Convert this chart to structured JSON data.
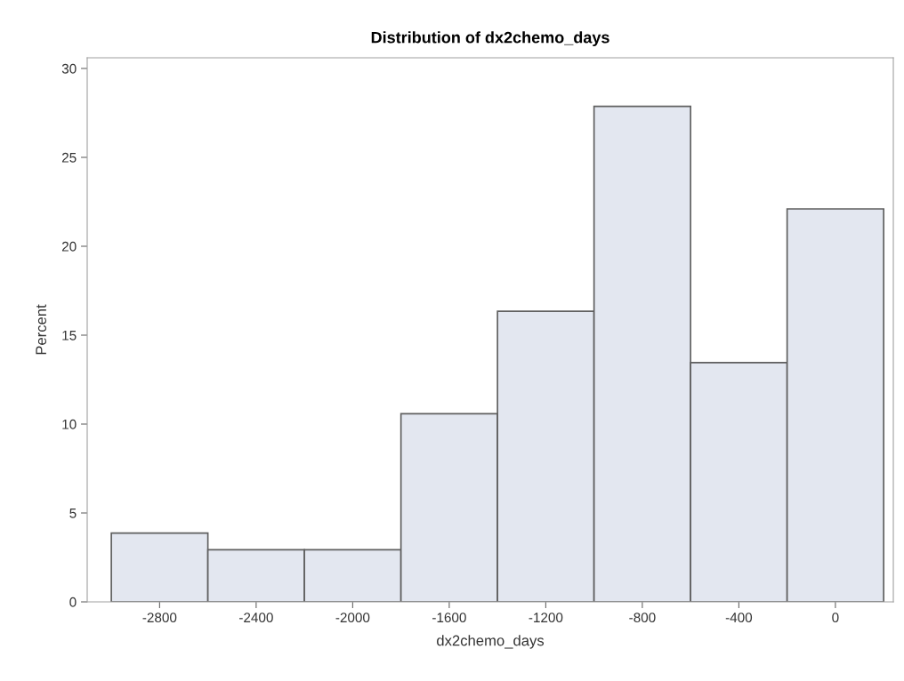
{
  "chart_data": {
    "type": "histogram",
    "title": "Distribution of dx2chemo_days",
    "xlabel": "dx2chemo_days",
    "ylabel": "Percent",
    "bins": [
      -3000,
      -2600,
      -2200,
      -1800,
      -1400,
      -1000,
      -600,
      -200,
      200
    ],
    "values": [
      3.87,
      2.93,
      2.93,
      10.58,
      16.34,
      27.87,
      13.46,
      22.1
    ],
    "color": "#e3e7f0",
    "xlim": [
      -3100,
      240
    ],
    "xticks": [
      -2800,
      -2400,
      -2000,
      -1600,
      -1200,
      -800,
      -400,
      0
    ],
    "ylim": [
      0,
      30.6
    ],
    "yticks": [
      0,
      5,
      10,
      15,
      20,
      25,
      30
    ],
    "grid": false
  }
}
